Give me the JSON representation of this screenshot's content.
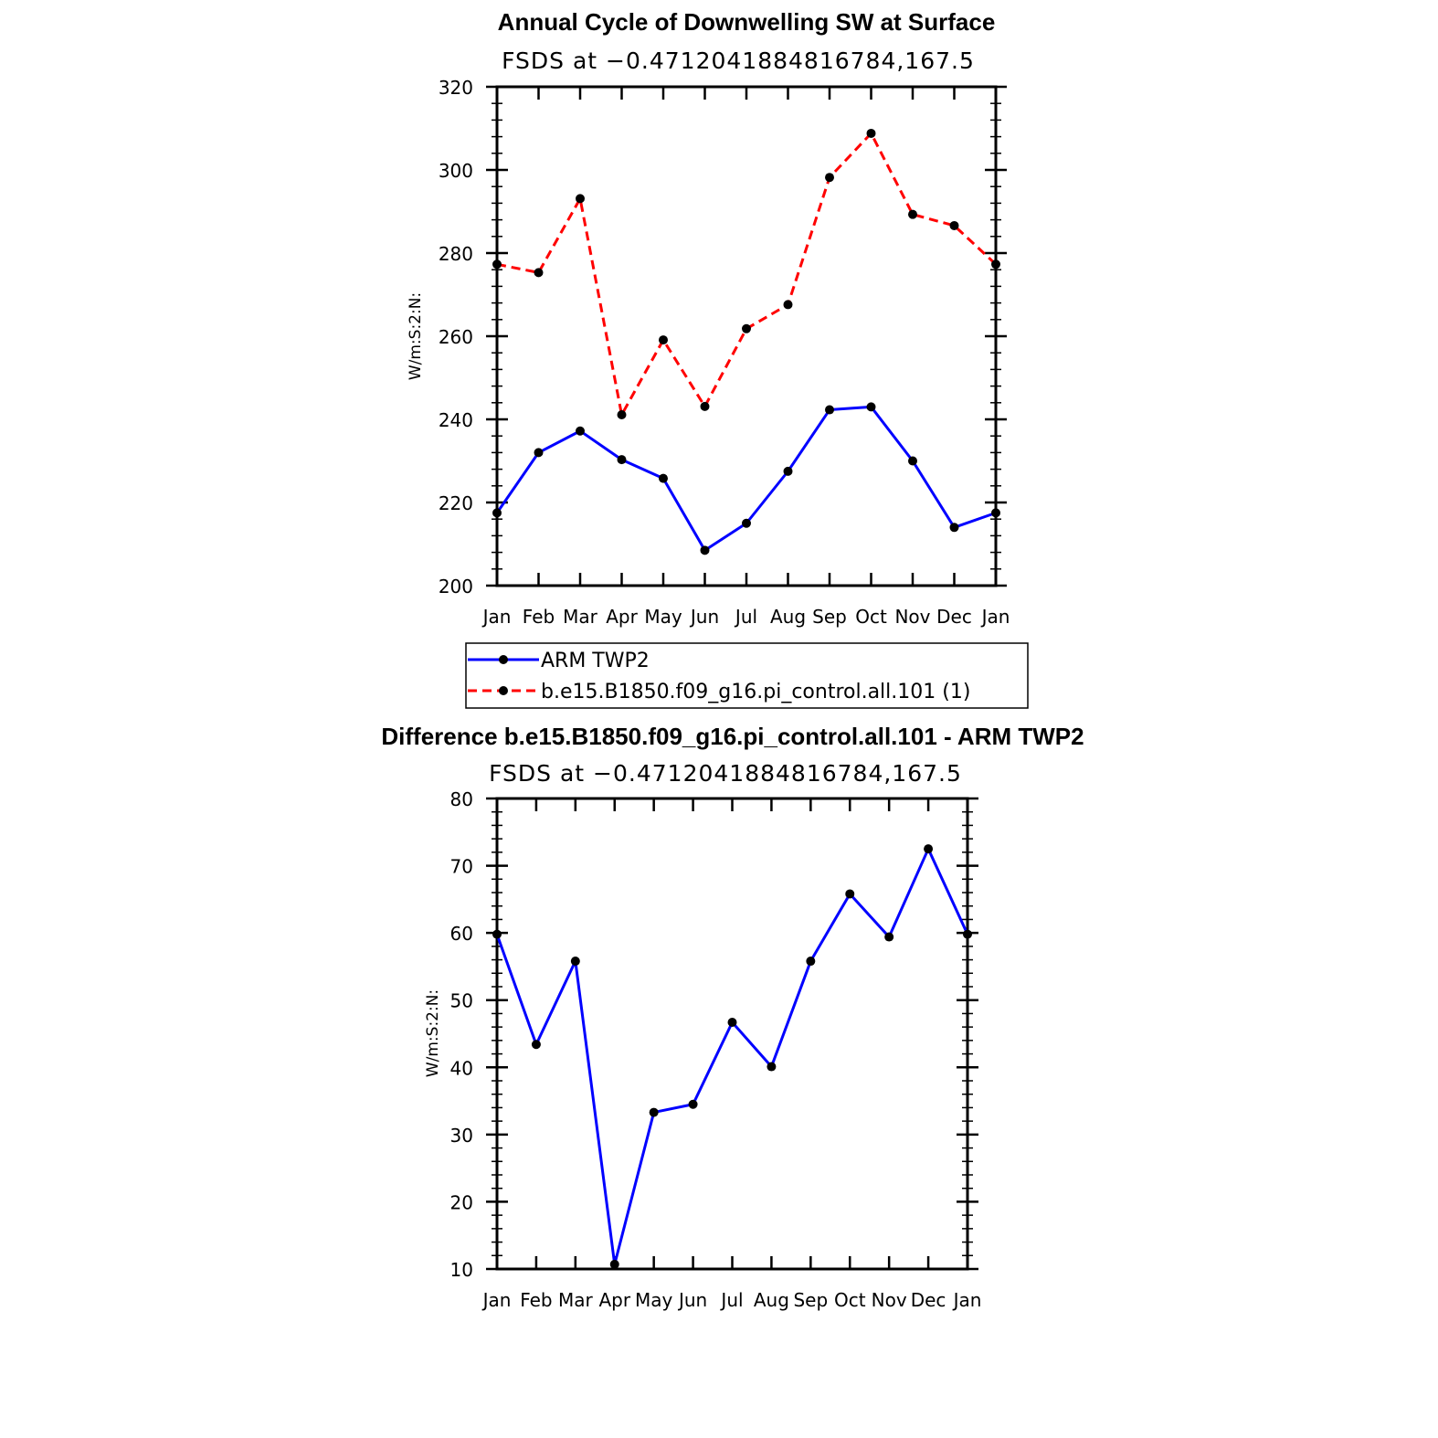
{
  "chart_data": [
    {
      "type": "line",
      "title": "Annual Cycle of Downwelling SW at Surface",
      "subtitle": "FSDS at −0.4712041884816784,167.5",
      "xlabel": "",
      "ylabel": "W/m:S:2:N:",
      "categories": [
        "Jan",
        "Feb",
        "Mar",
        "Apr",
        "May",
        "Jun",
        "Jul",
        "Aug",
        "Sep",
        "Oct",
        "Nov",
        "Dec",
        "Jan"
      ],
      "ylim": [
        200,
        320
      ],
      "yticks": [
        "200",
        "220",
        "240",
        "260",
        "280",
        "300",
        "320"
      ],
      "series": [
        {
          "name": "ARM TWP2",
          "color": "#0000ff",
          "dash": "solid",
          "values": [
            217.5,
            232,
            237.2,
            230.3,
            225.8,
            208.5,
            215,
            227.5,
            242.3,
            243,
            230,
            214,
            217.5
          ]
        },
        {
          "name": "b.e15.B1850.f09_g16.pi_control.all.101 (1)",
          "color": "#ff0000",
          "dash": "dashed",
          "values": [
            277.3,
            275.3,
            293.1,
            241.1,
            259.1,
            243.1,
            261.8,
            267.6,
            298.2,
            308.8,
            289.3,
            286.6,
            277.3
          ]
        }
      ],
      "legend": "below"
    },
    {
      "type": "line",
      "title": "Difference b.e15.B1850.f09_g16.pi_control.all.101 - ARM TWP2",
      "subtitle": "FSDS at −0.4712041884816784,167.5",
      "xlabel": "",
      "ylabel": "W/m:S:2:N:",
      "categories": [
        "Jan",
        "Feb",
        "Mar",
        "Apr",
        "May",
        "Jun",
        "Jul",
        "Aug",
        "Sep",
        "Oct",
        "Nov",
        "Dec",
        "Jan"
      ],
      "ylim": [
        10,
        80
      ],
      "yticks": [
        "10",
        "20",
        "30",
        "40",
        "50",
        "60",
        "70",
        "80"
      ],
      "series": [
        {
          "color": "#0000ff",
          "dash": "solid",
          "values": [
            59.8,
            43.4,
            55.8,
            10.7,
            33.3,
            34.5,
            46.7,
            40.1,
            55.8,
            65.8,
            59.4,
            72.5,
            59.8
          ]
        }
      ]
    }
  ]
}
